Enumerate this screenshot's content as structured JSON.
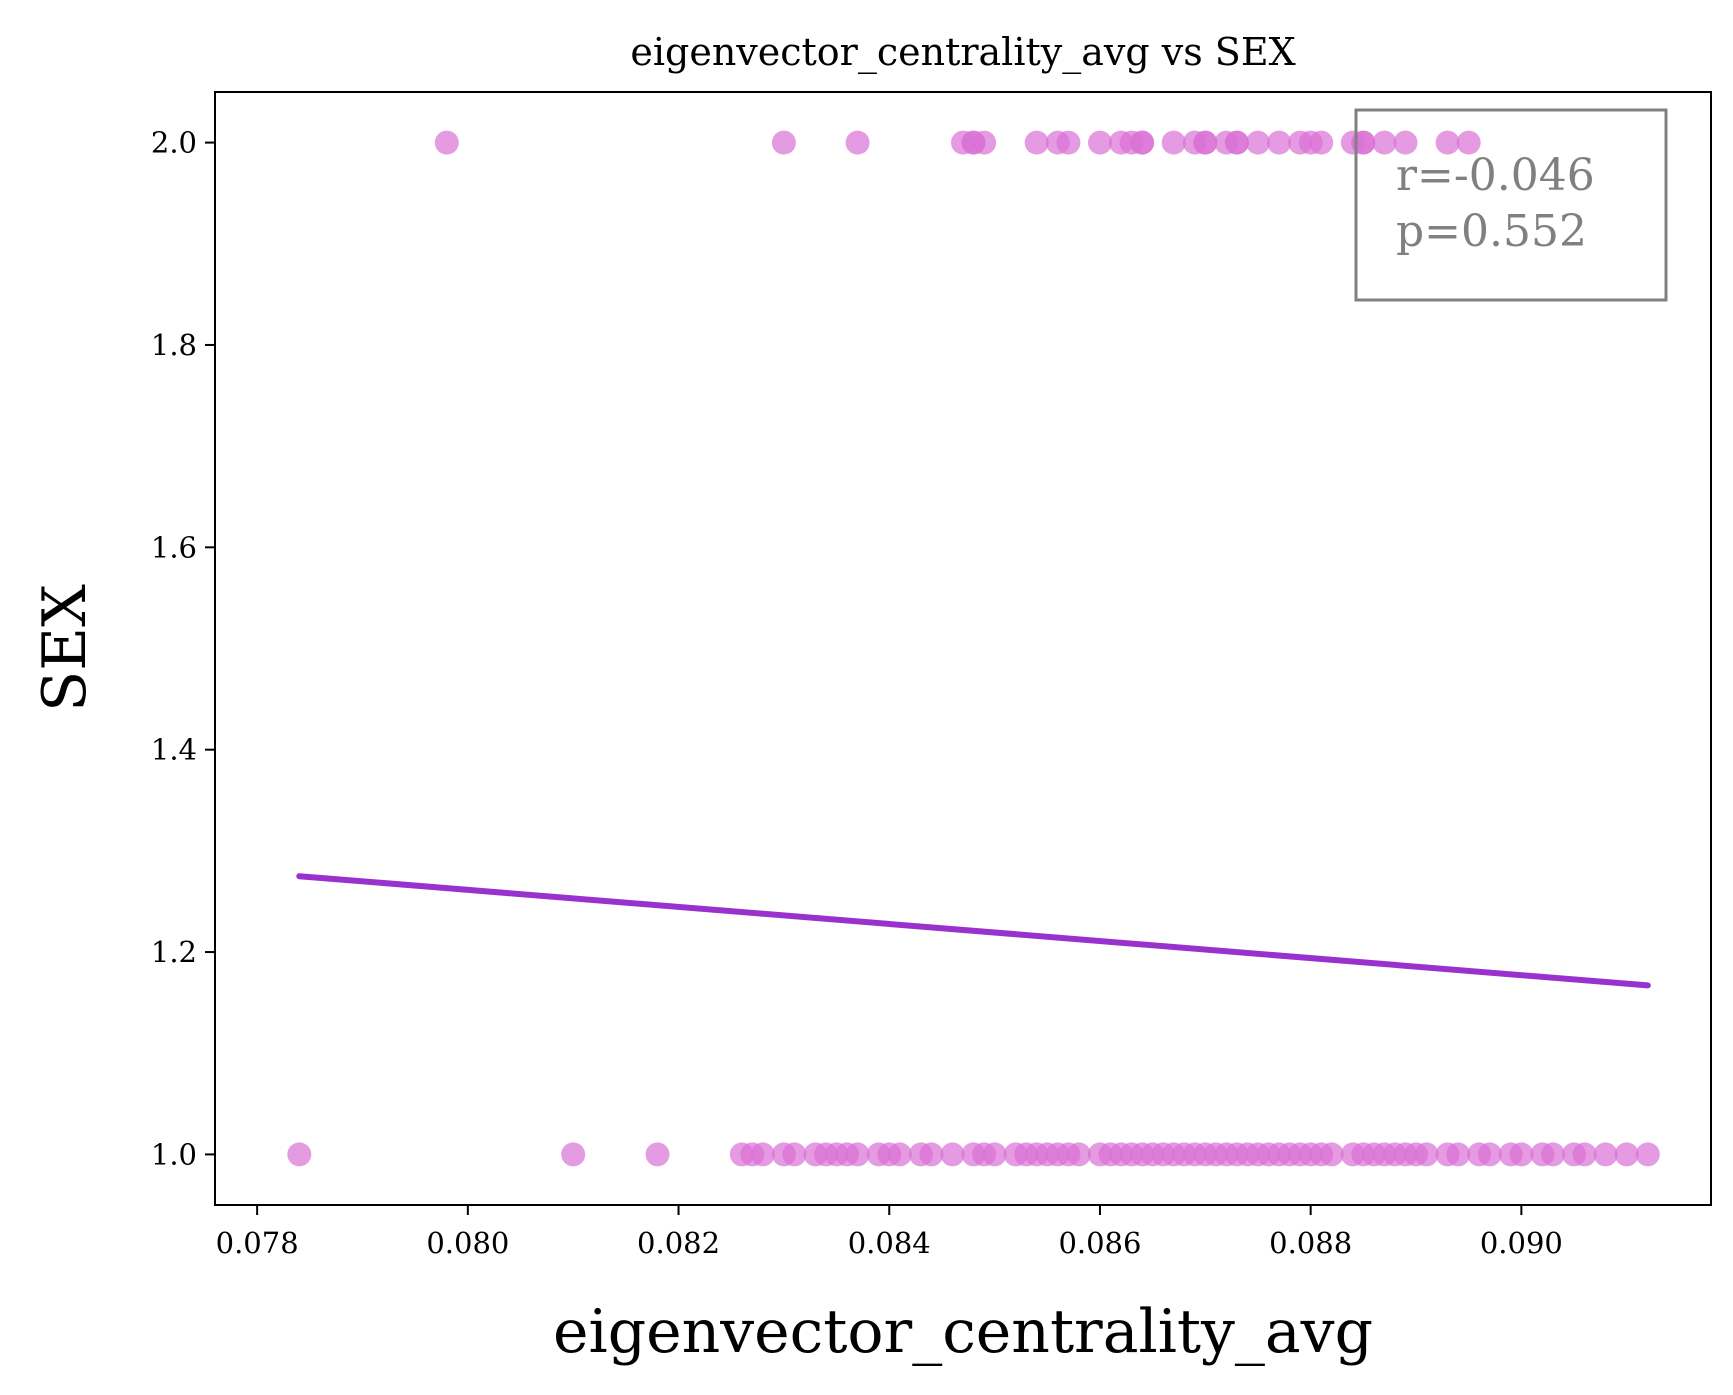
{
  "colors": {
    "point": "#da70d6",
    "regression_line": "#9932cc",
    "stats_text": "#808080",
    "stats_box_edge": "#808080",
    "axes": "#000000"
  },
  "chart_data": {
    "type": "scatter",
    "title": "eigenvector_centrality_avg vs SEX",
    "xlabel": "eigenvector_centrality_avg",
    "ylabel": "SEX",
    "xlim": [
      0.0776,
      0.0918
    ],
    "ylim": [
      0.95,
      2.05
    ],
    "grid": false,
    "x_ticks": [
      0.078,
      0.08,
      0.082,
      0.084,
      0.086,
      0.088,
      0.09
    ],
    "x_tick_labels": [
      "0.078",
      "0.080",
      "0.082",
      "0.084",
      "0.086",
      "0.088",
      "0.090"
    ],
    "y_ticks": [
      1.0,
      1.2,
      1.4,
      1.6,
      1.8,
      2.0
    ],
    "y_tick_labels": [
      "1.0",
      "1.2",
      "1.4",
      "1.6",
      "1.8",
      "2.0"
    ],
    "series": [
      {
        "x": [
          0.0798,
          0.083,
          0.0837,
          0.0847,
          0.0848,
          0.0848,
          0.0849,
          0.0854,
          0.0856,
          0.0857,
          0.086,
          0.0862,
          0.0863,
          0.0864,
          0.0864,
          0.0867,
          0.0869,
          0.087,
          0.087,
          0.0872,
          0.0873,
          0.0873,
          0.0875,
          0.0877,
          0.0879,
          0.088,
          0.0881,
          0.0884,
          0.0885,
          0.0885,
          0.0887,
          0.0889,
          0.0893,
          0.0895
        ],
        "y": [
          2,
          2,
          2,
          2,
          2,
          2,
          2,
          2,
          2,
          2,
          2,
          2,
          2,
          2,
          2,
          2,
          2,
          2,
          2,
          2,
          2,
          2,
          2,
          2,
          2,
          2,
          2,
          2,
          2,
          2,
          2,
          2,
          2,
          2
        ]
      },
      {
        "x": [
          0.0784,
          0.081,
          0.0818,
          0.0826,
          0.0827,
          0.0828,
          0.083,
          0.0831,
          0.0833,
          0.0834,
          0.0835,
          0.0836,
          0.0837,
          0.0839,
          0.084,
          0.0841,
          0.0843,
          0.0844,
          0.0846,
          0.0848,
          0.0849,
          0.085,
          0.0852,
          0.0853,
          0.0854,
          0.0855,
          0.0856,
          0.0857,
          0.0858,
          0.086,
          0.0861,
          0.0862,
          0.0863,
          0.0864,
          0.0865,
          0.0866,
          0.0867,
          0.0868,
          0.0869,
          0.087,
          0.0871,
          0.0872,
          0.0873,
          0.0874,
          0.0875,
          0.0876,
          0.0877,
          0.0878,
          0.0879,
          0.088,
          0.0881,
          0.0882,
          0.0884,
          0.0885,
          0.0886,
          0.0887,
          0.0888,
          0.0889,
          0.089,
          0.0891,
          0.0893,
          0.0894,
          0.0896,
          0.0897,
          0.0899,
          0.09,
          0.0902,
          0.0903,
          0.0905,
          0.0906,
          0.0908,
          0.091,
          0.0912
        ],
        "y": [
          1,
          1,
          1,
          1,
          1,
          1,
          1,
          1,
          1,
          1,
          1,
          1,
          1,
          1,
          1,
          1,
          1,
          1,
          1,
          1,
          1,
          1,
          1,
          1,
          1,
          1,
          1,
          1,
          1,
          1,
          1,
          1,
          1,
          1,
          1,
          1,
          1,
          1,
          1,
          1,
          1,
          1,
          1,
          1,
          1,
          1,
          1,
          1,
          1,
          1,
          1,
          1,
          1,
          1,
          1,
          1,
          1,
          1,
          1,
          1,
          1,
          1,
          1,
          1,
          1,
          1,
          1,
          1,
          1,
          1,
          1,
          1,
          1
        ]
      }
    ],
    "regression_line": {
      "x": [
        0.0784,
        0.0912
      ],
      "y": [
        1.275,
        1.167
      ]
    },
    "annotation": {
      "r_text": "r=-0.046",
      "p_text": "p=0.552",
      "placement": "top-right"
    }
  }
}
